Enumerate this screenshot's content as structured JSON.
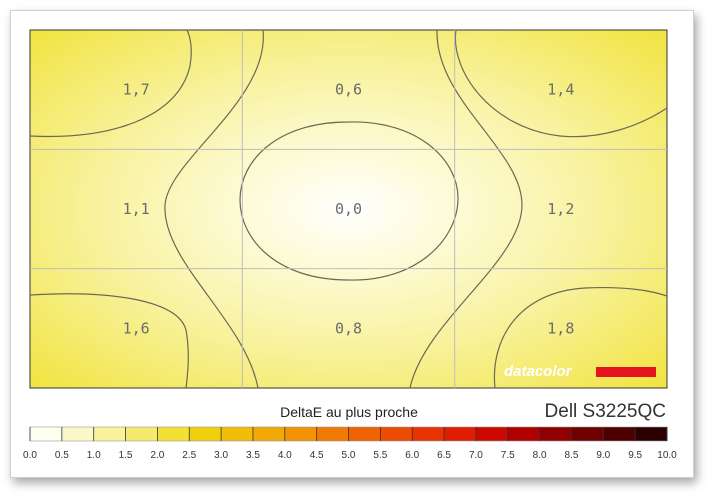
{
  "chart_data": {
    "type": "heatmap",
    "title": "DeltaE au plus proche",
    "device": "Dell S3225QC",
    "brand": "datacolor",
    "rows": 3,
    "cols": 3,
    "grid": true,
    "cell_labels": [
      [
        "1,7",
        "0,6",
        "1,4"
      ],
      [
        "1,1",
        "0,0",
        "1,2"
      ],
      [
        "1,6",
        "0,8",
        "1,8"
      ]
    ],
    "values": [
      [
        1.7,
        0.6,
        1.4
      ],
      [
        1.1,
        0.0,
        1.2
      ],
      [
        1.6,
        0.8,
        1.8
      ]
    ],
    "color_scale": {
      "min": 0.0,
      "max": 10.0,
      "step": 0.5,
      "tick_labels": [
        "0.0",
        "0.5",
        "1.0",
        "1.5",
        "2.0",
        "2.5",
        "3.0",
        "3.5",
        "4.0",
        "4.5",
        "5.0",
        "5.5",
        "6.0",
        "6.5",
        "7.0",
        "7.5",
        "8.0",
        "8.5",
        "9.0",
        "9.5",
        "10.0"
      ],
      "colors": [
        "#fffff0",
        "#fbf9c8",
        "#f8f29a",
        "#f5ea6c",
        "#f3e035",
        "#f0cf0c",
        "#f1bd06",
        "#f2a805",
        "#f29204",
        "#f17a04",
        "#ef6303",
        "#ec4b03",
        "#e83402",
        "#e01d02",
        "#cc0a01",
        "#b00000",
        "#900000",
        "#6e0000",
        "#4c0000",
        "#2a0000"
      ]
    }
  }
}
